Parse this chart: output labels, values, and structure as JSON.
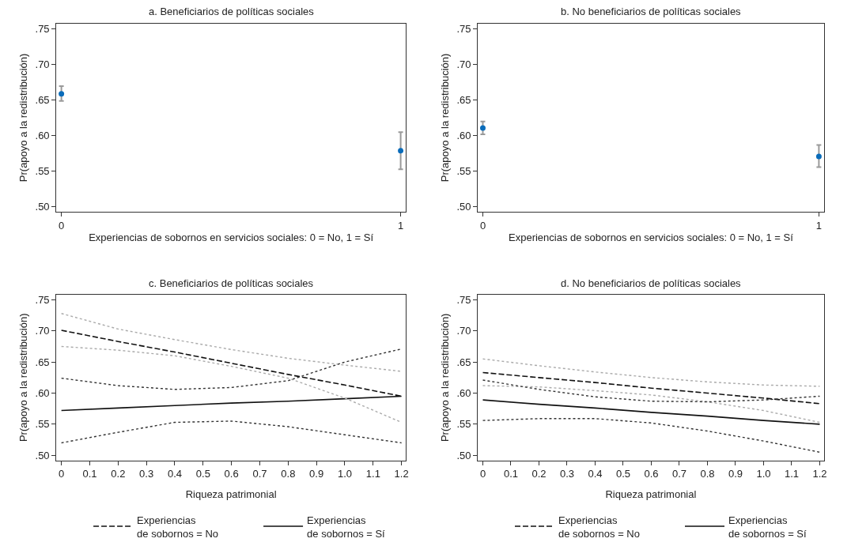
{
  "chart_data": [
    {
      "type": "scatter",
      "title": "a. Beneficiarios de políticas sociales",
      "xlabel": "Experiencias de sobornos en servicios sociales: 0 = No, 1 = Sí",
      "ylabel": "Pr(apoyo a la redistribución)",
      "x": [
        0,
        1
      ],
      "values": [
        0.659,
        0.579
      ],
      "errors": [
        [
          0.649,
          0.67
        ],
        [
          0.553,
          0.605
        ]
      ],
      "color": "#0a6cba",
      "marker": "circle",
      "xlim": [
        -0.015,
        1.015
      ],
      "xticks": [
        0,
        1
      ],
      "ylim": [
        0.493,
        0.758
      ],
      "yticks": [
        {
          "value": 0.5,
          "label": ".50"
        },
        {
          "value": 0.55,
          "label": ".55"
        },
        {
          "value": 0.6,
          "label": ".60"
        },
        {
          "value": 0.65,
          "label": ".65"
        },
        {
          "value": 0.7,
          "label": ".70"
        },
        {
          "value": 0.75,
          "label": ".75"
        }
      ]
    },
    {
      "type": "scatter",
      "title": "b. No beneficiarios de políticas sociales",
      "xlabel": "Experiencias de sobornos en servicios sociales: 0 = No, 1 = Sí",
      "ylabel": "Pr(apoyo a la redistribución)",
      "x": [
        0,
        1
      ],
      "values": [
        0.611,
        0.571
      ],
      "errors": [
        [
          0.602,
          0.62
        ],
        [
          0.556,
          0.587
        ]
      ],
      "color": "#0a6cba",
      "marker": "circle",
      "xlim": [
        -0.015,
        1.015
      ],
      "xticks": [
        0,
        1
      ],
      "ylim": [
        0.493,
        0.758
      ],
      "yticks": [
        {
          "value": 0.5,
          "label": ".50"
        },
        {
          "value": 0.55,
          "label": ".55"
        },
        {
          "value": 0.6,
          "label": ".60"
        },
        {
          "value": 0.65,
          "label": ".65"
        },
        {
          "value": 0.7,
          "label": ".70"
        },
        {
          "value": 0.75,
          "label": ".75"
        }
      ]
    },
    {
      "type": "line",
      "title": "c. Beneficiarios de políticas sociales",
      "xlabel": "Riqueza patrimonial",
      "ylabel": "Pr(apoyo a la redistribución)",
      "x": [
        0,
        0.2,
        0.4,
        0.6,
        0.8,
        1.0,
        1.2
      ],
      "legend": "bottom",
      "series": [
        {
          "name": "Experiencias\nde sobornos = No",
          "color": "#111111",
          "line_style": "dashed",
          "values": [
            0.701,
            0.683,
            0.666,
            0.648,
            0.63,
            0.613,
            0.595
          ]
        },
        {
          "name": "Experiencias\nde sobornos = Sí",
          "color": "#111111",
          "line_style": "solid",
          "values": [
            0.572,
            0.576,
            0.58,
            0.584,
            0.587,
            0.591,
            0.595
          ]
        },
        {
          "color": "#aaaaaa",
          "line_style": "dotted",
          "values": [
            0.728,
            0.703,
            0.686,
            0.67,
            0.656,
            0.645,
            0.635
          ]
        },
        {
          "color": "#aaaaaa",
          "line_style": "dotted",
          "values": [
            0.675,
            0.669,
            0.66,
            0.643,
            0.624,
            0.592,
            0.553
          ]
        },
        {
          "color": "#333333",
          "line_style": "dotted",
          "values": [
            0.624,
            0.612,
            0.606,
            0.609,
            0.62,
            0.65,
            0.671
          ]
        },
        {
          "color": "#333333",
          "line_style": "dotted",
          "values": [
            0.52,
            0.537,
            0.553,
            0.555,
            0.546,
            0.533,
            0.52
          ]
        }
      ],
      "xlim": [
        -0.018,
        1.215
      ],
      "xticks": [
        0,
        0.1,
        0.2,
        0.3,
        0.4,
        0.5,
        0.6,
        0.7,
        0.8,
        0.9,
        {
          "value": 1.0,
          "label": "1.0"
        },
        1.1,
        1.2
      ],
      "ylim": [
        0.492,
        0.758
      ],
      "yticks": [
        {
          "value": 0.5,
          "label": ".50"
        },
        {
          "value": 0.55,
          "label": ".55"
        },
        {
          "value": 0.6,
          "label": ".60"
        },
        {
          "value": 0.65,
          "label": ".65"
        },
        {
          "value": 0.7,
          "label": ".70"
        },
        {
          "value": 0.75,
          "label": ".75"
        }
      ]
    },
    {
      "type": "line",
      "title": "d. No beneficiarios de políticas sociales",
      "xlabel": "Riqueza patrimonial",
      "ylabel": "Pr(apoyo a la redistribución)",
      "x": [
        0,
        0.2,
        0.4,
        0.6,
        0.8,
        1.0,
        1.2
      ],
      "legend": "bottom",
      "series": [
        {
          "name": "Experiencias\nde sobornos = No",
          "color": "#111111",
          "line_style": "dashed",
          "values": [
            0.633,
            0.625,
            0.617,
            0.608,
            0.6,
            0.592,
            0.583
          ]
        },
        {
          "name": "Experiencias\nde sobornos = Sí",
          "color": "#111111",
          "line_style": "solid",
          "values": [
            0.589,
            0.582,
            0.576,
            0.569,
            0.563,
            0.556,
            0.55
          ]
        },
        {
          "color": "#aaaaaa",
          "line_style": "dotted",
          "values": [
            0.655,
            0.644,
            0.634,
            0.625,
            0.618,
            0.613,
            0.611
          ]
        },
        {
          "color": "#aaaaaa",
          "line_style": "dotted",
          "values": [
            0.612,
            0.61,
            0.604,
            0.597,
            0.586,
            0.572,
            0.553
          ]
        },
        {
          "color": "#333333",
          "line_style": "dotted",
          "values": [
            0.621,
            0.606,
            0.594,
            0.587,
            0.586,
            0.589,
            0.595
          ]
        },
        {
          "color": "#333333",
          "line_style": "dotted",
          "values": [
            0.556,
            0.559,
            0.559,
            0.552,
            0.539,
            0.523,
            0.505
          ]
        }
      ],
      "xlim": [
        -0.018,
        1.215
      ],
      "xticks": [
        0,
        0.1,
        0.2,
        0.3,
        0.4,
        0.5,
        0.6,
        0.7,
        0.8,
        0.9,
        {
          "value": 1.0,
          "label": "1.0"
        },
        1.1,
        1.2
      ],
      "ylim": [
        0.492,
        0.758
      ],
      "yticks": [
        {
          "value": 0.5,
          "label": ".50"
        },
        {
          "value": 0.55,
          "label": ".55"
        },
        {
          "value": 0.6,
          "label": ".60"
        },
        {
          "value": 0.65,
          "label": ".65"
        },
        {
          "value": 0.7,
          "label": ".70"
        },
        {
          "value": 0.75,
          "label": ".75"
        }
      ]
    }
  ]
}
